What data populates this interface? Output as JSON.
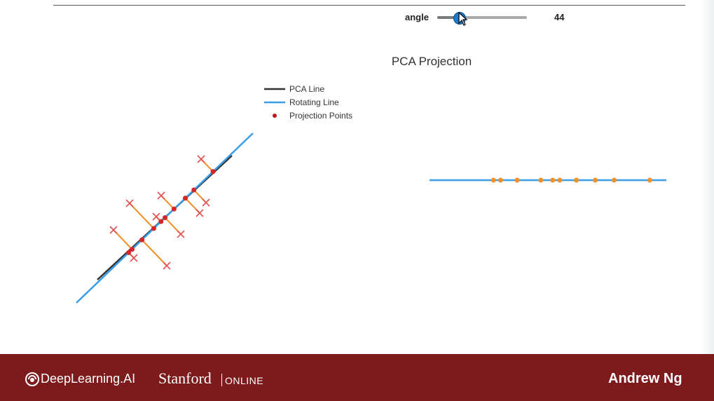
{
  "slider": {
    "label": "angle",
    "value": "44",
    "min": 0,
    "max": 180,
    "current": 44
  },
  "chart_data": [
    {
      "type": "scatter",
      "panel": "original-space",
      "title": "",
      "lines": [
        {
          "name": "PCA Line",
          "color": "#333333"
        },
        {
          "name": "Rotating Line",
          "color": "#3a9ee8"
        }
      ],
      "points_marker": "x",
      "points_color": "#e05252",
      "projections_color": "#d62728",
      "connector_color": "#f0902a"
    },
    {
      "type": "scatter",
      "panel": "projection-1d",
      "title": "PCA Projection",
      "line_color": "#3a9ee8",
      "points_color": "#f0902a",
      "legend_position": "top-left",
      "projection_values": [
        0.27,
        0.3,
        0.37,
        0.47,
        0.52,
        0.55,
        0.62,
        0.7,
        0.78,
        0.93
      ]
    }
  ],
  "legend": {
    "items": [
      {
        "label": "PCA Line",
        "color": "#333333",
        "kind": "line"
      },
      {
        "label": "Rotating Line",
        "color": "#3a9ee8",
        "kind": "line"
      },
      {
        "label": "Projection Points",
        "color": "#c0161c",
        "kind": "dot"
      }
    ]
  },
  "footer": {
    "brand": "DeepLearning.AI",
    "partner": "Stanford",
    "partner_suffix": "ONLINE",
    "presenter": "Andrew Ng",
    "background": "#7c1a1c"
  }
}
